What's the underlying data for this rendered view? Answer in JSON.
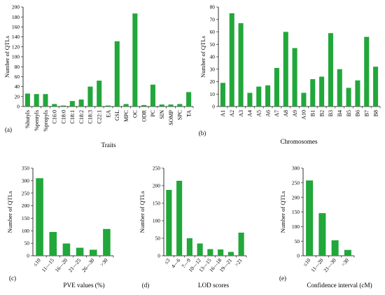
{
  "bar_color": "#21a73a",
  "chart_data": [
    {
      "type": "bar",
      "panel_label": "(a)",
      "xlabel": "Traits",
      "ylabel": "Number of QTLs",
      "ylim": [
        0,
        200
      ],
      "yticks": [
        0,
        20,
        40,
        60,
        80,
        100,
        120,
        140,
        160,
        180,
        200
      ],
      "categories": [
        "%butyls",
        "%pentyls",
        "%propyls",
        "C16:0",
        "C18:0",
        "C18:1",
        "C18:2",
        "C18:3",
        "C22:1",
        "EA",
        "GSL",
        "MPC",
        "OC",
        "ODR",
        "PC",
        "SIN",
        "SOMP",
        "SPC",
        "TA"
      ],
      "values": [
        26,
        25,
        25,
        5,
        2,
        11,
        14,
        40,
        52,
        2,
        131,
        5,
        187,
        3,
        44,
        4,
        4,
        5,
        29
      ]
    },
    {
      "type": "bar",
      "panel_label": "(b)",
      "xlabel": "Chromosomes",
      "ylabel": "Number of QTLs",
      "ylim": [
        0,
        80
      ],
      "yticks": [
        0,
        10,
        20,
        30,
        40,
        50,
        60,
        70,
        80
      ],
      "categories": [
        "A1",
        "A2",
        "A3",
        "A4",
        "A5",
        "A6",
        "A7",
        "A8",
        "A9",
        "A10",
        "B1",
        "B2",
        "B3",
        "B4",
        "B5",
        "B6",
        "B7",
        "B8"
      ],
      "values": [
        19,
        75,
        67,
        11,
        16,
        17,
        31,
        60,
        47,
        11,
        22,
        24,
        59,
        30,
        15,
        21,
        56,
        32
      ]
    },
    {
      "type": "bar",
      "panel_label": "(c)",
      "xlabel": "PVE values (%)",
      "ylabel": "Number of QTLs",
      "ylim": [
        0,
        350
      ],
      "yticks": [
        0,
        50,
        100,
        150,
        200,
        250,
        300,
        350
      ],
      "categories": [
        "≤10",
        "11—15",
        "16—20",
        "21—25",
        "26—30",
        ">30"
      ],
      "values": [
        310,
        95,
        49,
        32,
        24,
        107
      ]
    },
    {
      "type": "bar",
      "panel_label": "(d)",
      "xlabel": "LOD scores",
      "ylabel": "Number of QTLs",
      "ylim": [
        0,
        250
      ],
      "yticks": [
        0,
        50,
        100,
        150,
        200,
        250
      ],
      "categories": [
        "≤3",
        "4—6",
        "7—9",
        "10—12",
        "13—15",
        "16—18",
        "19—21",
        ">21"
      ],
      "values": [
        188,
        214,
        50,
        35,
        19,
        18,
        11,
        66
      ]
    },
    {
      "type": "bar",
      "panel_label": "(e)",
      "xlabel": "Confidence interval (cM)",
      "ylabel": "Number of QTLs",
      "ylim": [
        0,
        300
      ],
      "yticks": [
        0,
        50,
        100,
        150,
        200,
        250,
        300
      ],
      "categories": [
        "≤10",
        "11—20",
        "21—30",
        ">30"
      ],
      "values": [
        258,
        146,
        53,
        20
      ]
    }
  ]
}
